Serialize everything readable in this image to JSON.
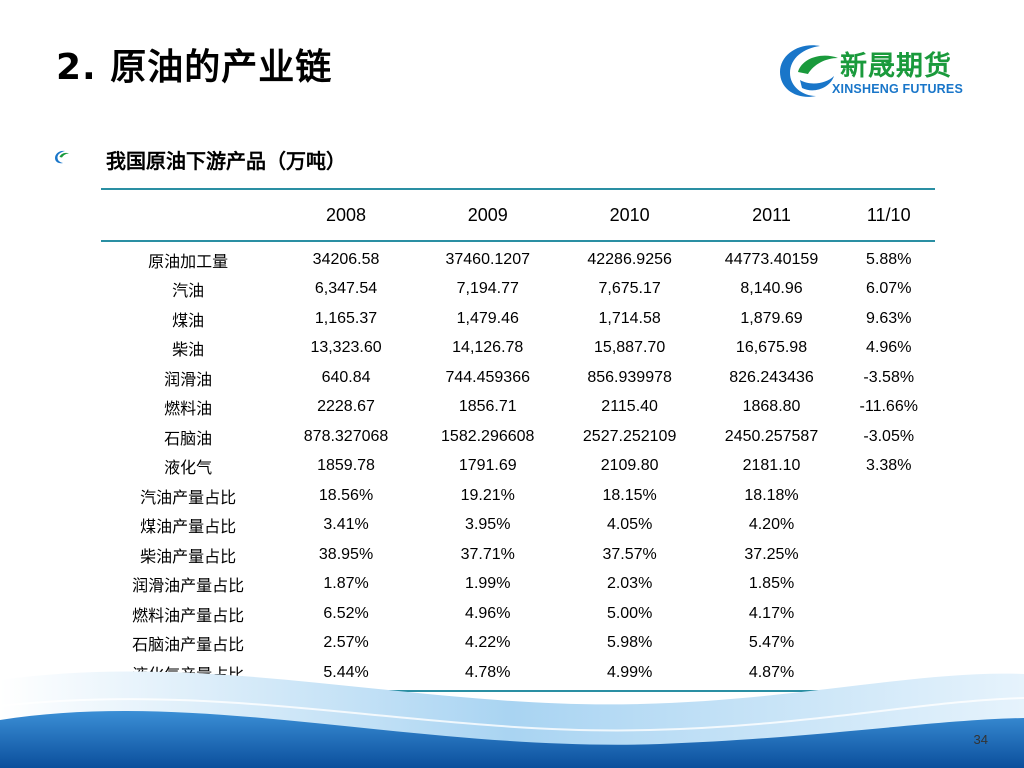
{
  "slide": {
    "title": "2. 原油的产业链",
    "subtitle": "我国原油下游产品（万吨）",
    "page_number": "34"
  },
  "logo": {
    "name_cn": "新晟期货",
    "name_en": "XINSHENG FUTURES",
    "colors": {
      "green": "#1a9a3c",
      "blue": "#1976c9"
    }
  },
  "table": {
    "headers": [
      "",
      "2008",
      "2009",
      "2010",
      "2011",
      "11/10"
    ],
    "rows": [
      [
        "原油加工量",
        "34206.58",
        "37460.1207",
        "42286.9256",
        "44773.40159",
        "5.88%"
      ],
      [
        "汽油",
        "6,347.54",
        "7,194.77",
        "7,675.17",
        "8,140.96",
        "6.07%"
      ],
      [
        "煤油",
        "1,165.37",
        "1,479.46",
        "1,714.58",
        "1,879.69",
        "9.63%"
      ],
      [
        "柴油",
        "13,323.60",
        "14,126.78",
        "15,887.70",
        "16,675.98",
        "4.96%"
      ],
      [
        "润滑油",
        "640.84",
        "744.459366",
        "856.939978",
        "826.243436",
        "-3.58%"
      ],
      [
        "燃料油",
        "2228.67",
        "1856.71",
        "2115.40",
        "1868.80",
        "-11.66%"
      ],
      [
        "石脑油",
        "878.327068",
        "1582.296608",
        "2527.252109",
        "2450.257587",
        "-3.05%"
      ],
      [
        "液化气",
        "1859.78",
        "1791.69",
        "2109.80",
        "2181.10",
        "3.38%"
      ],
      [
        "汽油产量占比",
        "18.56%",
        "19.21%",
        "18.15%",
        "18.18%",
        ""
      ],
      [
        "煤油产量占比",
        "3.41%",
        "3.95%",
        "4.05%",
        "4.20%",
        ""
      ],
      [
        "柴油产量占比",
        "38.95%",
        "37.71%",
        "37.57%",
        "37.25%",
        ""
      ],
      [
        "润滑油产量占比",
        "1.87%",
        "1.99%",
        "2.03%",
        "1.85%",
        ""
      ],
      [
        "燃料油产量占比",
        "6.52%",
        "4.96%",
        "5.00%",
        "4.17%",
        ""
      ],
      [
        "石脑油产量占比",
        "2.57%",
        "4.22%",
        "5.98%",
        "5.47%",
        ""
      ],
      [
        "液化气产量占比",
        "5.44%",
        "4.78%",
        "4.99%",
        "4.87%",
        ""
      ]
    ],
    "rule_color": "#2a8fa3"
  },
  "theme": {
    "wave_light": "#a9d4f2",
    "wave_mid": "#3b8fd6",
    "wave_dark": "#0b4f9c"
  }
}
